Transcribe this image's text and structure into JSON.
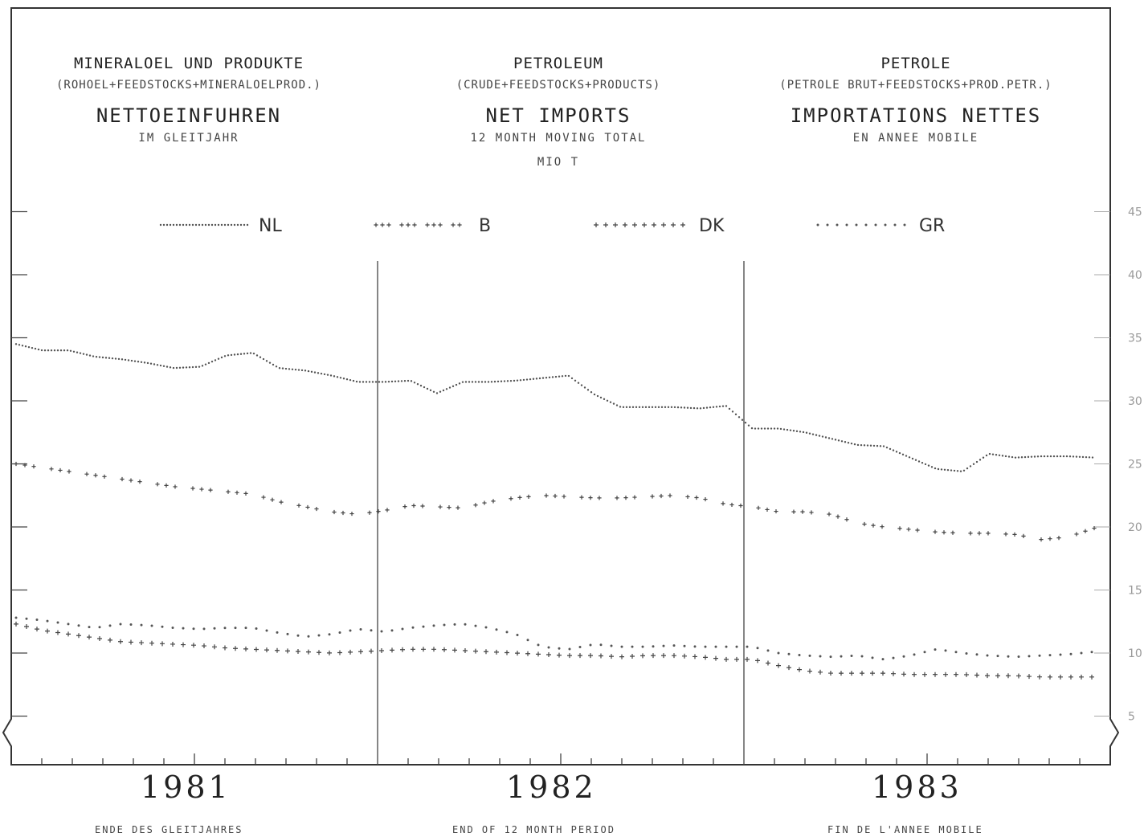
{
  "headers": [
    {
      "name": "MINERALOEL UND PRODUKTE",
      "sub": "(ROHOEL+FEEDSTOCKS+MINERALOELPROD.)",
      "big": "NETTOEINFUHREN",
      "small": "IM GLEITJAHR"
    },
    {
      "name": "PETROLEUM",
      "sub": "(CRUDE+FEEDSTOCKS+PRODUCTS)",
      "big": "NET IMPORTS",
      "small": "12 MONTH MOVING TOTAL",
      "unit": "MIO T"
    },
    {
      "name": "PETROLE",
      "sub": "(PETROLE BRUT+FEEDSTOCKS+PROD.PETR.)",
      "big": "IMPORTATIONS NETTES",
      "small": "EN ANNEE MOBILE"
    }
  ],
  "footer": {
    "years": [
      "1981",
      "1982",
      "1983"
    ],
    "notes": [
      "ENDE DES GLEITJAHRES",
      "END OF 12 MONTH PERIOD",
      "FIN DE L'ANNEE MOBILE"
    ]
  },
  "chart_data": {
    "type": "line",
    "ylim": [
      0,
      45
    ],
    "y_ticks": [
      "5",
      "10",
      "15",
      "20",
      "25",
      "30",
      "35",
      "40",
      "45"
    ],
    "x_label_years": [
      "1981",
      "1982",
      "1983"
    ],
    "months_per_year": 12,
    "series": [
      {
        "name": "NL",
        "style": "dense-dots",
        "values": [
          34.5,
          34.0,
          34.0,
          33.5,
          33.3,
          33.0,
          32.6,
          32.7,
          33.6,
          33.8,
          32.6,
          32.4,
          32.0,
          31.5,
          31.5,
          31.6,
          30.6,
          31.5,
          31.5,
          31.6,
          31.8,
          32.0,
          30.5,
          29.5,
          29.5,
          29.5,
          29.4,
          29.6,
          27.8,
          27.8,
          27.5,
          27.0,
          26.5,
          26.4,
          25.5,
          24.6,
          24.4,
          25.8,
          25.5,
          25.6,
          25.6,
          25.5
        ]
      },
      {
        "name": "B",
        "style": "plus-groups",
        "values": [
          25.0,
          24.7,
          24.4,
          24.1,
          23.8,
          23.5,
          23.2,
          23.0,
          22.8,
          22.6,
          22.0,
          21.6,
          21.2,
          21.0,
          21.3,
          21.7,
          21.6,
          21.5,
          22.0,
          22.3,
          22.5,
          22.4,
          22.3,
          22.3,
          22.4,
          22.5,
          22.3,
          21.8,
          21.6,
          21.2,
          21.2,
          21.0,
          20.3,
          20.0,
          19.8,
          19.6,
          19.5,
          19.5,
          19.4,
          19.0,
          19.2,
          19.9
        ]
      },
      {
        "name": "DK",
        "style": "sparse-plus",
        "values": [
          12.3,
          11.8,
          11.5,
          11.2,
          10.9,
          10.8,
          10.7,
          10.6,
          10.4,
          10.3,
          10.2,
          10.1,
          10.0,
          10.1,
          10.2,
          10.3,
          10.3,
          10.2,
          10.1,
          10.0,
          9.9,
          9.8,
          9.8,
          9.7,
          9.8,
          9.8,
          9.7,
          9.5,
          9.5,
          9.0,
          8.6,
          8.4,
          8.4,
          8.4,
          8.3,
          8.3,
          8.3,
          8.2,
          8.2,
          8.1,
          8.1,
          8.1
        ]
      },
      {
        "name": "GR",
        "style": "sparse-dots",
        "values": [
          12.8,
          12.6,
          12.3,
          12.0,
          12.3,
          12.2,
          12.0,
          11.9,
          12.0,
          12.0,
          11.6,
          11.3,
          11.5,
          11.9,
          11.7,
          12.0,
          12.2,
          12.3,
          12.0,
          11.5,
          10.5,
          10.3,
          10.7,
          10.5,
          10.5,
          10.6,
          10.5,
          10.5,
          10.5,
          10.0,
          9.8,
          9.7,
          9.8,
          9.5,
          9.8,
          10.3,
          10.0,
          9.8,
          9.7,
          9.8,
          9.9,
          10.1
        ]
      }
    ]
  }
}
